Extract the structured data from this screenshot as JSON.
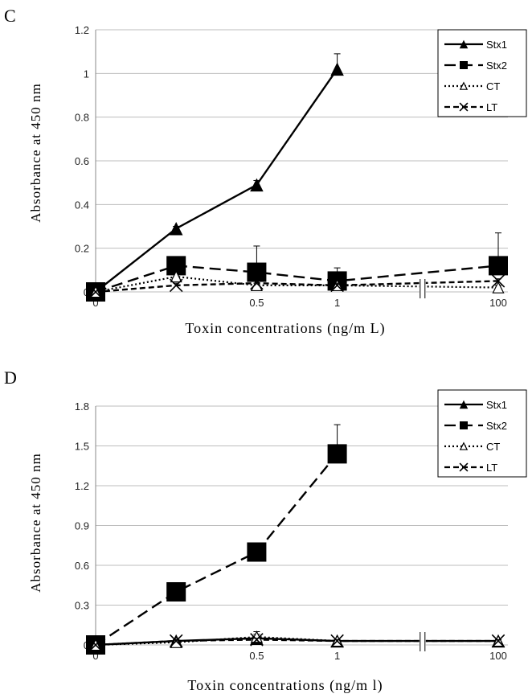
{
  "chart_data": [
    {
      "type": "line",
      "panel_letter": "C",
      "xlabel": "Toxin concentrations (ng/m L)",
      "ylabel": "Absorbance at 450 nm",
      "categories": [
        "0",
        "",
        "0.5",
        "1",
        "",
        "100"
      ],
      "ylim": [
        0,
        1.2
      ],
      "yticks": [
        "0",
        "0.2",
        "0.4",
        "0.6",
        "0.8",
        "1",
        "1.2"
      ],
      "axis_break": "between 1 and 100",
      "grid": "horizontal",
      "legend_position": "top-right",
      "series": [
        {
          "name": "Stx1",
          "x": [
            0,
            0.25,
            0.5,
            1
          ],
          "values": [
            0,
            0.29,
            0.49,
            1.02
          ],
          "errors": [
            0,
            0.01,
            0.02,
            0.07
          ],
          "line": "solid",
          "marker": "filled-triangle",
          "xpos": [
            0,
            1,
            2,
            3
          ]
        },
        {
          "name": "Stx2",
          "x": [
            0,
            0.25,
            0.5,
            1,
            100
          ],
          "values": [
            0,
            0.12,
            0.09,
            0.05,
            0.12
          ],
          "errors": [
            0,
            0.02,
            0.12,
            0.06,
            0.15
          ],
          "line": "long-dash",
          "marker": "filled-square",
          "xpos": [
            0,
            1,
            2,
            3,
            5
          ]
        },
        {
          "name": "CT",
          "x": [
            0,
            0.25,
            0.5,
            1,
            100
          ],
          "values": [
            0,
            0.07,
            0.03,
            0.03,
            0.02
          ],
          "errors": [
            0,
            0.01,
            0.01,
            0.01,
            0.01
          ],
          "line": "dotted",
          "marker": "open-triangle",
          "xpos": [
            0,
            1,
            2,
            3,
            5
          ]
        },
        {
          "name": "LT",
          "x": [
            0,
            0.25,
            0.5,
            1,
            100
          ],
          "values": [
            0,
            0.03,
            0.04,
            0.03,
            0.05
          ],
          "errors": [
            0,
            0.01,
            0.01,
            0.01,
            0.01
          ],
          "line": "dash",
          "marker": "x",
          "xpos": [
            0,
            1,
            2,
            3,
            5
          ]
        }
      ]
    },
    {
      "type": "line",
      "panel_letter": "D",
      "xlabel": "Toxin concentrations (ng/m l)",
      "ylabel": "Absorbance at 450 nm",
      "categories": [
        "0",
        "",
        "0.5",
        "1",
        "",
        "100"
      ],
      "ylim": [
        0,
        1.8
      ],
      "yticks": [
        "0",
        "0.3",
        "0.6",
        "0.9",
        "1.2",
        "1.5",
        "1.8"
      ],
      "axis_break": "between 1 and 100",
      "grid": "horizontal",
      "legend_position": "top-right",
      "series": [
        {
          "name": "Stx1",
          "x": [
            0,
            0.25,
            0.5,
            1,
            100
          ],
          "values": [
            0,
            0.03,
            0.05,
            0.03,
            0.03
          ],
          "errors": [
            0,
            0.01,
            0.05,
            0.01,
            0.01
          ],
          "line": "solid",
          "marker": "filled-triangle",
          "xpos": [
            0,
            1,
            2,
            3,
            5
          ]
        },
        {
          "name": "Stx2",
          "x": [
            0,
            0.25,
            0.5,
            1
          ],
          "values": [
            0,
            0.4,
            0.7,
            1.44
          ],
          "errors": [
            0,
            0.02,
            0.02,
            0.22
          ],
          "line": "long-dash",
          "marker": "filled-square",
          "xpos": [
            0,
            1,
            2,
            3
          ]
        },
        {
          "name": "CT",
          "x": [
            0,
            0.25,
            0.5,
            1,
            100
          ],
          "values": [
            0,
            0.02,
            0.06,
            0.03,
            0.03
          ],
          "errors": [
            0,
            0.01,
            0.02,
            0.01,
            0.01
          ],
          "line": "dotted",
          "marker": "open-triangle",
          "xpos": [
            0,
            1,
            2,
            3,
            5
          ]
        },
        {
          "name": "LT",
          "x": [
            0,
            0.25,
            0.5,
            1,
            100
          ],
          "values": [
            0,
            0.03,
            0.04,
            0.03,
            0.03
          ],
          "errors": [
            0,
            0.01,
            0.01,
            0.01,
            0.01
          ],
          "line": "dash",
          "marker": "x",
          "xpos": [
            0,
            1,
            2,
            3,
            5
          ]
        }
      ]
    }
  ]
}
